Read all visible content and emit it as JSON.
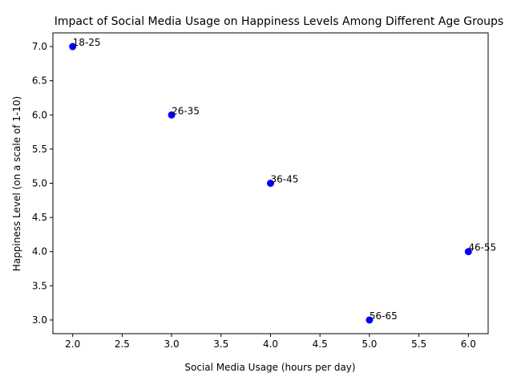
{
  "chart_data": {
    "type": "scatter",
    "title": "Impact of Social Media Usage on Happiness Levels Among Different Age Groups",
    "xlabel": "Social Media Usage (hours per day)",
    "ylabel": "Happiness Level (on a scale of 1-10)",
    "xlim": [
      1.8,
      6.2
    ],
    "ylim": [
      2.8,
      7.2
    ],
    "xticks": [
      "2.0",
      "2.5",
      "3.0",
      "3.5",
      "4.0",
      "4.5",
      "5.0",
      "5.5",
      "6.0"
    ],
    "yticks": [
      "3.0",
      "3.5",
      "4.0",
      "4.5",
      "5.0",
      "5.5",
      "6.0",
      "6.5",
      "7.0"
    ],
    "grid": false,
    "marker_color": "#0000ff",
    "points": [
      {
        "label": "18-25",
        "x": 2,
        "y": 7
      },
      {
        "label": "26-35",
        "x": 3,
        "y": 6
      },
      {
        "label": "36-45",
        "x": 4,
        "y": 5
      },
      {
        "label": "46-55",
        "x": 6,
        "y": 4
      },
      {
        "label": "56-65",
        "x": 5,
        "y": 3
      }
    ]
  }
}
